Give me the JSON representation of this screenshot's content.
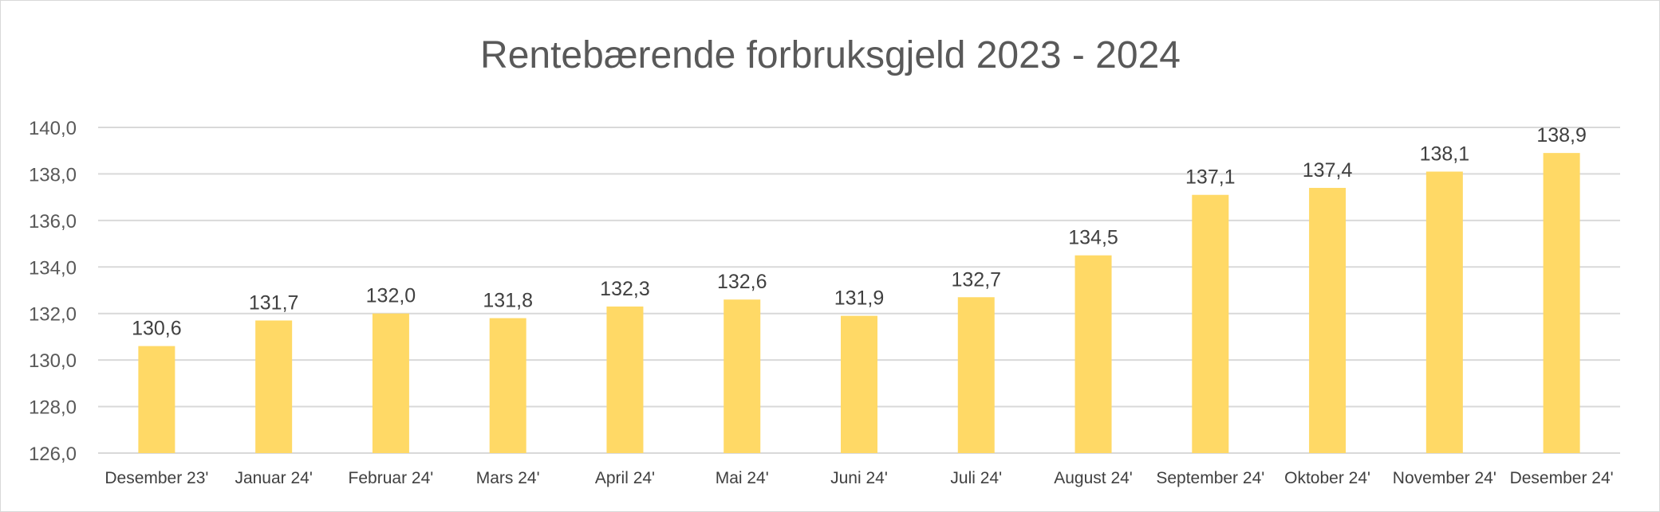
{
  "chart_data": {
    "type": "bar",
    "title": "Rentebærende forbruksgjeld 2023 - 2024",
    "xlabel": "",
    "ylabel": "",
    "categories": [
      "Desember 23'",
      "Januar 24'",
      "Februar 24'",
      "Mars 24'",
      "April 24'",
      "Mai 24'",
      "Juni 24'",
      "Juli 24'",
      "August 24'",
      "September 24'",
      "Oktober 24'",
      "November 24'",
      "Desember 24'"
    ],
    "values": [
      130.6,
      131.7,
      132.0,
      131.8,
      132.3,
      132.6,
      131.9,
      132.7,
      134.5,
      137.1,
      137.4,
      138.1,
      138.9
    ],
    "value_labels": [
      "130,6",
      "131,7",
      "132,0",
      "131,8",
      "132,3",
      "132,6",
      "131,9",
      "132,7",
      "134,5",
      "137,1",
      "137,4",
      "138,1",
      "138,9"
    ],
    "ylim": [
      126,
      140
    ],
    "yticks": [
      126,
      128,
      130,
      132,
      134,
      136,
      138,
      140
    ],
    "ytick_labels": [
      "126,0",
      "128,0",
      "130,0",
      "132,0",
      "134,0",
      "136,0",
      "138,0",
      "140,0"
    ],
    "grid": true,
    "legend": "none",
    "bar_color": "#FFD966"
  }
}
